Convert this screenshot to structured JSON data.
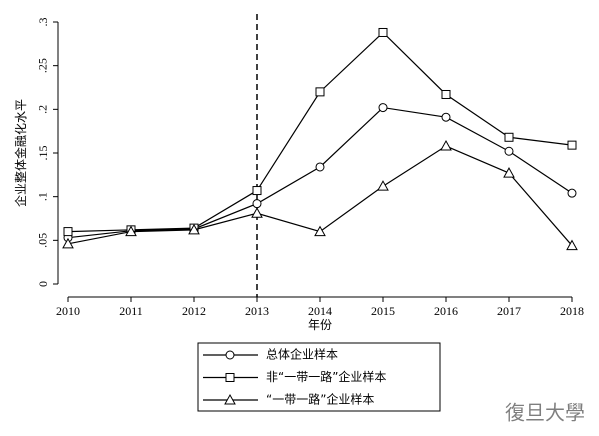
{
  "chart_data": {
    "type": "line",
    "y_label": "企业整体金融化水平",
    "x_label": "年份",
    "x": [
      2010,
      2011,
      2012,
      2013,
      2014,
      2015,
      2016,
      2017,
      2018
    ],
    "xlim": [
      2010,
      2018
    ],
    "xticks": [
      2010,
      2011,
      2012,
      2013,
      2014,
      2015,
      2016,
      2017,
      2018
    ],
    "ylim": [
      0,
      0.3
    ],
    "yticks": [
      0,
      {
        "value": 0.05,
        "label": ".05"
      },
      {
        "value": 0.1,
        "label": ".1"
      },
      {
        "value": 0.15,
        "label": ".15"
      },
      {
        "value": 0.2,
        "label": ".2"
      },
      {
        "value": 0.25,
        "label": ".25"
      },
      {
        "value": 0.3,
        "label": ".3"
      }
    ],
    "vline": 2013,
    "series": [
      {
        "name": "总体企业样本",
        "color": "#000000",
        "marker": "circle",
        "values": [
          0.053,
          0.061,
          0.063,
          0.092,
          0.134,
          0.202,
          0.191,
          0.152,
          0.104
        ]
      },
      {
        "name": "非“一带一路”企业样本",
        "color": "#000000",
        "marker": "square",
        "values": [
          0.06,
          0.062,
          0.064,
          0.107,
          0.22,
          0.288,
          0.217,
          0.168,
          0.159
        ]
      },
      {
        "name": "“一带一路”企业样本",
        "color": "#000000",
        "marker": "triangle",
        "values": [
          0.046,
          0.06,
          0.062,
          0.081,
          0.06,
          0.112,
          0.158,
          0.127,
          0.044
        ]
      }
    ],
    "watermark": "復旦大學"
  }
}
